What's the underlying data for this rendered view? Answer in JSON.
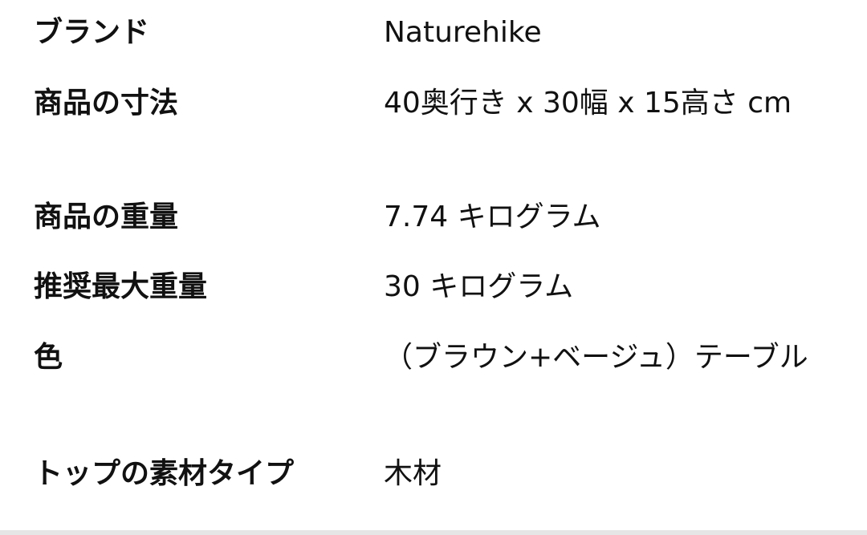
{
  "specs": [
    {
      "label": "ブランド",
      "value": "Naturehike"
    },
    {
      "label": "商品の寸法",
      "value": "40奥行き x 30幅 x 15高さ cm"
    },
    {
      "label": "商品の重量",
      "value": "7.74 キログラム"
    },
    {
      "label": "推奨最大重量",
      "value": "30 キログラム"
    },
    {
      "label": "色",
      "value": "（ブラウン+ベージュ）テーブル"
    },
    {
      "label": "トップの素材タイプ",
      "value": "木材"
    }
  ]
}
